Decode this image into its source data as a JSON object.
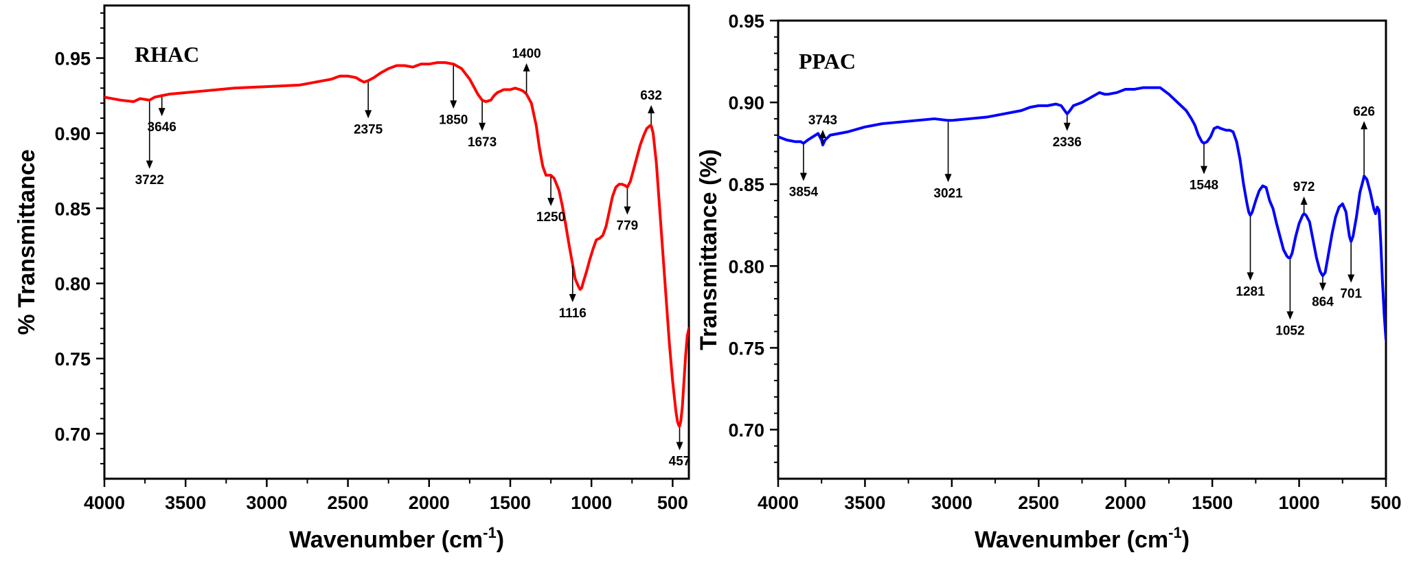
{
  "chart_data": [
    {
      "type": "line",
      "title": "RHAC",
      "xlabel": "Wavenumber (cm",
      "xlabel_sup": "-1",
      "xlabel_close": ")",
      "ylabel": "% Transmittance",
      "xlim": [
        4000,
        400
      ],
      "ylim": [
        0.67,
        0.985
      ],
      "x_ticks": [
        4000,
        3500,
        3000,
        2500,
        2000,
        1500,
        1000,
        500
      ],
      "x_tick_labels": [
        "4000",
        "3500",
        "3000",
        "2500",
        "2000",
        "1500",
        "1000",
        "500"
      ],
      "y_ticks": [
        0.7,
        0.75,
        0.8,
        0.85,
        0.9,
        0.95
      ],
      "y_tick_labels": [
        "0.70",
        "0.75",
        "0.80",
        "0.85",
        "0.90",
        "0.95"
      ],
      "grid": false,
      "color": "#ff0000",
      "series": [
        {
          "x": [
            4000,
            3900,
            3820,
            3780,
            3722,
            3690,
            3646,
            3600,
            3500,
            3400,
            3300,
            3200,
            3000,
            2800,
            2700,
            2600,
            2550,
            2500,
            2450,
            2420,
            2400,
            2375,
            2340,
            2300,
            2250,
            2200,
            2150,
            2100,
            2050,
            2000,
            1950,
            1900,
            1850,
            1800,
            1750,
            1700,
            1673,
            1650,
            1620,
            1600,
            1580,
            1560,
            1540,
            1520,
            1500,
            1470,
            1440,
            1420,
            1400,
            1370,
            1340,
            1320,
            1300,
            1280,
            1260,
            1250,
            1230,
            1200,
            1180,
            1160,
            1140,
            1120,
            1100,
            1080,
            1070,
            1060,
            1050,
            1030,
            1010,
            990,
            970,
            950,
            930,
            910,
            890,
            870,
            850,
            830,
            810,
            790,
            779,
            760,
            740,
            720,
            700,
            680,
            660,
            640,
            632,
            620,
            600,
            580,
            560,
            540,
            520,
            500,
            480,
            470,
            460,
            457,
            450,
            440,
            430,
            420,
            410,
            400
          ],
          "y": [
            0.924,
            0.922,
            0.921,
            0.923,
            0.922,
            0.924,
            0.925,
            0.926,
            0.927,
            0.928,
            0.929,
            0.93,
            0.931,
            0.932,
            0.934,
            0.936,
            0.938,
            0.938,
            0.937,
            0.935,
            0.934,
            0.935,
            0.937,
            0.94,
            0.943,
            0.945,
            0.945,
            0.944,
            0.946,
            0.946,
            0.947,
            0.947,
            0.946,
            0.943,
            0.936,
            0.926,
            0.922,
            0.921,
            0.922,
            0.925,
            0.927,
            0.928,
            0.929,
            0.929,
            0.929,
            0.93,
            0.929,
            0.928,
            0.926,
            0.92,
            0.905,
            0.89,
            0.878,
            0.872,
            0.872,
            0.872,
            0.87,
            0.862,
            0.852,
            0.84,
            0.827,
            0.815,
            0.803,
            0.798,
            0.796,
            0.797,
            0.801,
            0.808,
            0.816,
            0.823,
            0.829,
            0.83,
            0.832,
            0.838,
            0.848,
            0.858,
            0.864,
            0.866,
            0.866,
            0.865,
            0.864,
            0.868,
            0.876,
            0.884,
            0.892,
            0.898,
            0.903,
            0.905,
            0.905,
            0.9,
            0.88,
            0.85,
            0.82,
            0.79,
            0.76,
            0.735,
            0.715,
            0.708,
            0.705,
            0.705,
            0.708,
            0.718,
            0.735,
            0.752,
            0.765,
            0.77
          ]
        }
      ],
      "peaks": [
        {
          "label": "3722",
          "x": 3722,
          "dir": "down"
        },
        {
          "label": "3646",
          "x": 3646,
          "dir": "down"
        },
        {
          "label": "2375",
          "x": 2375,
          "dir": "down"
        },
        {
          "label": "1850",
          "x": 1850,
          "dir": "down"
        },
        {
          "label": "1673",
          "x": 1673,
          "dir": "down"
        },
        {
          "label": "1400",
          "x": 1400,
          "dir": "up"
        },
        {
          "label": "1250",
          "x": 1250,
          "dir": "down"
        },
        {
          "label": "1116",
          "x": 1116,
          "dir": "down"
        },
        {
          "label": "779",
          "x": 779,
          "dir": "down"
        },
        {
          "label": "632",
          "x": 632,
          "dir": "up"
        },
        {
          "label": "457",
          "x": 457,
          "dir": "down"
        }
      ]
    },
    {
      "type": "line",
      "title": "PPAC",
      "xlabel": "Wavenumber (cm",
      "xlabel_sup": "-1",
      "xlabel_close": ")",
      "ylabel": "Transmittance (%)",
      "xlim": [
        4000,
        500
      ],
      "ylim": [
        0.67,
        0.95
      ],
      "x_ticks": [
        4000,
        3500,
        3000,
        2500,
        2000,
        1500,
        1000,
        500
      ],
      "x_tick_labels": [
        "4000",
        "3500",
        "3000",
        "2500",
        "2000",
        "1500",
        "1000",
        "500"
      ],
      "y_ticks": [
        0.7,
        0.75,
        0.8,
        0.85,
        0.9,
        0.95
      ],
      "y_tick_labels": [
        "0.70",
        "0.75",
        "0.80",
        "0.85",
        "0.90",
        "0.95"
      ],
      "grid": false,
      "color": "#0000ff",
      "series": [
        {
          "x": [
            4000,
            3950,
            3900,
            3870,
            3854,
            3830,
            3800,
            3770,
            3750,
            3743,
            3730,
            3700,
            3650,
            3600,
            3500,
            3400,
            3300,
            3200,
            3100,
            3021,
            3000,
            2900,
            2800,
            2700,
            2600,
            2550,
            2500,
            2450,
            2400,
            2370,
            2350,
            2336,
            2320,
            2300,
            2250,
            2200,
            2150,
            2120,
            2100,
            2050,
            2000,
            1950,
            1900,
            1850,
            1800,
            1750,
            1700,
            1650,
            1620,
            1600,
            1580,
            1560,
            1548,
            1530,
            1510,
            1490,
            1470,
            1450,
            1420,
            1400,
            1380,
            1360,
            1340,
            1320,
            1300,
            1290,
            1281,
            1270,
            1250,
            1230,
            1210,
            1190,
            1170,
            1150,
            1130,
            1110,
            1090,
            1070,
            1060,
            1052,
            1040,
            1020,
            1000,
            980,
            972,
            960,
            940,
            920,
            900,
            880,
            870,
            864,
            850,
            830,
            810,
            790,
            770,
            750,
            730,
            720,
            710,
            701,
            690,
            670,
            650,
            630,
            626,
            610,
            590,
            570,
            560,
            550,
            540,
            530,
            520,
            510,
            500
          ],
          "y": [
            0.879,
            0.877,
            0.876,
            0.876,
            0.875,
            0.877,
            0.879,
            0.881,
            0.877,
            0.874,
            0.877,
            0.88,
            0.881,
            0.882,
            0.885,
            0.887,
            0.888,
            0.889,
            0.89,
            0.889,
            0.889,
            0.89,
            0.891,
            0.893,
            0.895,
            0.897,
            0.898,
            0.898,
            0.899,
            0.898,
            0.895,
            0.893,
            0.895,
            0.898,
            0.9,
            0.903,
            0.906,
            0.905,
            0.905,
            0.906,
            0.908,
            0.908,
            0.909,
            0.909,
            0.909,
            0.905,
            0.9,
            0.895,
            0.89,
            0.886,
            0.88,
            0.876,
            0.875,
            0.876,
            0.879,
            0.884,
            0.885,
            0.884,
            0.883,
            0.883,
            0.882,
            0.876,
            0.865,
            0.85,
            0.838,
            0.833,
            0.831,
            0.833,
            0.84,
            0.846,
            0.849,
            0.848,
            0.84,
            0.835,
            0.826,
            0.818,
            0.81,
            0.806,
            0.805,
            0.805,
            0.808,
            0.818,
            0.826,
            0.831,
            0.832,
            0.831,
            0.827,
            0.816,
            0.805,
            0.797,
            0.795,
            0.794,
            0.796,
            0.808,
            0.82,
            0.83,
            0.836,
            0.838,
            0.833,
            0.825,
            0.818,
            0.815,
            0.818,
            0.83,
            0.845,
            0.853,
            0.855,
            0.853,
            0.845,
            0.835,
            0.832,
            0.836,
            0.834,
            0.815,
            0.79,
            0.77,
            0.755
          ]
        }
      ],
      "peaks": [
        {
          "label": "3854",
          "x": 3854,
          "dir": "down"
        },
        {
          "label": "3743",
          "x": 3743,
          "dir": "up"
        },
        {
          "label": "3021",
          "x": 3021,
          "dir": "down"
        },
        {
          "label": "2336",
          "x": 2336,
          "dir": "down"
        },
        {
          "label": "1548",
          "x": 1548,
          "dir": "down"
        },
        {
          "label": "1281",
          "x": 1281,
          "dir": "down"
        },
        {
          "label": "1052",
          "x": 1052,
          "dir": "down"
        },
        {
          "label": "972",
          "x": 972,
          "dir": "up"
        },
        {
          "label": "864",
          "x": 864,
          "dir": "down"
        },
        {
          "label": "701",
          "x": 701,
          "dir": "down"
        },
        {
          "label": "626",
          "x": 626,
          "dir": "up"
        }
      ]
    }
  ]
}
